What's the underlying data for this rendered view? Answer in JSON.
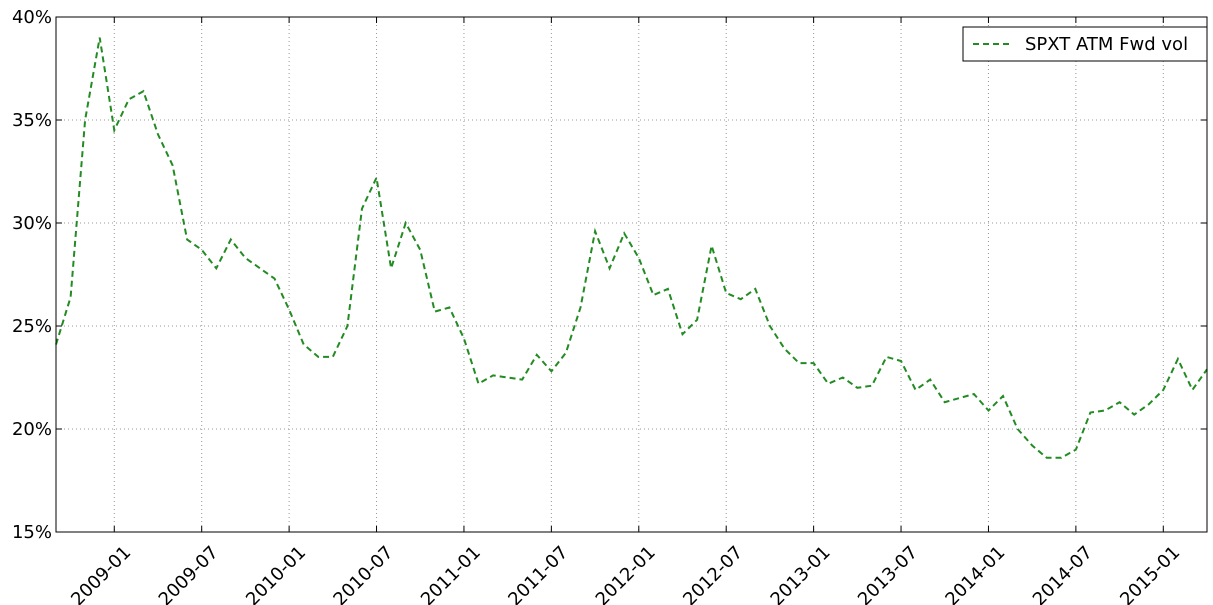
{
  "chart_data": {
    "type": "line",
    "x": [
      "2008-09",
      "2008-10",
      "2008-11",
      "2008-12",
      "2009-01",
      "2009-02",
      "2009-03",
      "2009-04",
      "2009-05",
      "2009-06",
      "2009-07",
      "2009-08",
      "2009-09",
      "2009-10",
      "2009-11",
      "2009-12",
      "2010-01",
      "2010-02",
      "2010-03",
      "2010-04",
      "2010-05",
      "2010-06",
      "2010-07",
      "2010-08",
      "2010-09",
      "2010-10",
      "2010-11",
      "2010-12",
      "2011-01",
      "2011-02",
      "2011-03",
      "2011-04",
      "2011-05",
      "2011-06",
      "2011-07",
      "2011-08",
      "2011-09",
      "2011-10",
      "2011-11",
      "2011-12",
      "2012-01",
      "2012-02",
      "2012-03",
      "2012-04",
      "2012-05",
      "2012-06",
      "2012-07",
      "2012-08",
      "2012-09",
      "2012-10",
      "2012-11",
      "2012-12",
      "2013-01",
      "2013-02",
      "2013-03",
      "2013-04",
      "2013-05",
      "2013-06",
      "2013-07",
      "2013-08",
      "2013-09",
      "2013-10",
      "2013-11",
      "2013-12",
      "2014-01",
      "2014-02",
      "2014-03",
      "2014-04",
      "2014-05",
      "2014-06",
      "2014-07",
      "2014-08",
      "2014-09",
      "2014-10",
      "2014-11",
      "2014-12",
      "2015-01",
      "2015-02",
      "2015-03",
      "2015-04"
    ],
    "series": [
      {
        "name": "SPXT ATM Fwd vol",
        "color": "#228b22",
        "values": [
          24.1,
          26.4,
          35.0,
          39.0,
          34.5,
          36.0,
          36.4,
          34.3,
          32.8,
          29.2,
          28.7,
          27.8,
          29.2,
          28.3,
          27.8,
          27.3,
          25.8,
          24.1,
          23.5,
          23.5,
          25.0,
          30.7,
          32.2,
          27.8,
          30.0,
          28.7,
          25.7,
          25.9,
          24.4,
          22.2,
          22.6,
          22.5,
          22.4,
          23.6,
          22.8,
          23.7,
          25.9,
          29.6,
          27.8,
          29.5,
          28.3,
          26.5,
          26.8,
          24.6,
          25.3,
          28.9,
          26.6,
          26.3,
          26.8,
          25.0,
          23.9,
          23.2,
          23.2,
          22.2,
          22.5,
          22.0,
          22.1,
          23.5,
          23.3,
          21.9,
          22.4,
          21.3,
          21.5,
          21.7,
          20.9,
          21.6,
          20.0,
          19.2,
          18.6,
          18.6,
          19.0,
          20.8,
          20.9,
          21.3,
          20.7,
          21.2,
          21.9,
          23.4,
          21.9,
          22.9
        ]
      }
    ],
    "xlim": [
      "2008-09",
      "2015-04"
    ],
    "xticks": [
      "2009-01",
      "2009-07",
      "2010-01",
      "2010-07",
      "2011-01",
      "2011-07",
      "2012-01",
      "2012-07",
      "2013-01",
      "2013-07",
      "2014-01",
      "2014-07",
      "2015-01"
    ],
    "ylim": [
      15,
      40
    ],
    "yticks": [
      {
        "value": 15,
        "label": "15%"
      },
      {
        "value": 20,
        "label": "20%"
      },
      {
        "value": 25,
        "label": "25%"
      },
      {
        "value": 30,
        "label": "30%"
      },
      {
        "value": 35,
        "label": "35%"
      },
      {
        "value": 40,
        "label": "40%"
      }
    ],
    "grid": true,
    "legend": "upper right",
    "line_style": "dashed"
  }
}
